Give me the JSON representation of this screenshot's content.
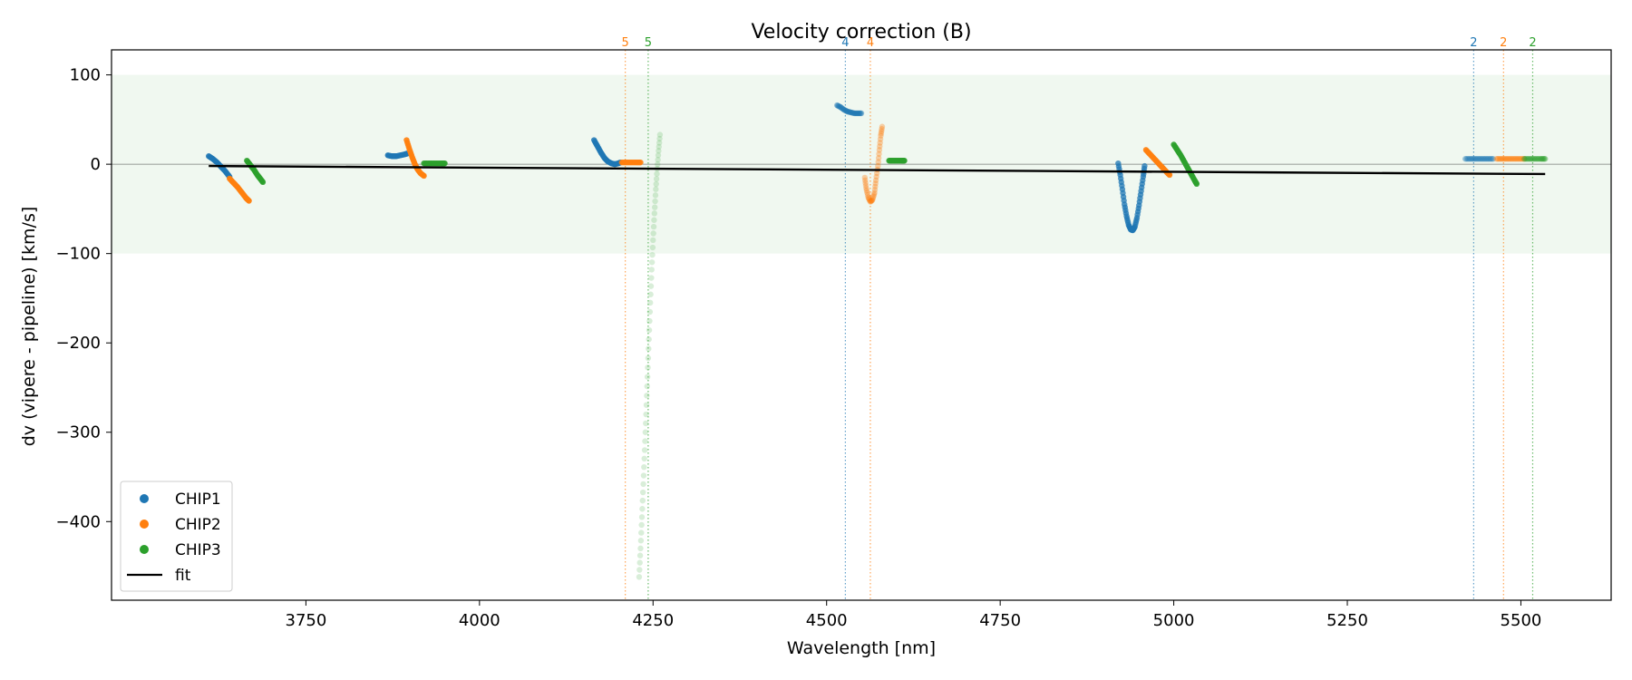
{
  "chart_data": {
    "type": "scatter",
    "title": "Velocity correction (B)",
    "xlabel": "Wavelength [nm]",
    "ylabel": "dv (vipere - pipeline) [km/s]",
    "xlim": [
      3470,
      5630
    ],
    "ylim": [
      -488,
      128
    ],
    "xticks": [
      3750,
      4000,
      4250,
      4500,
      4750,
      5000,
      5250,
      5500
    ],
    "yticks": [
      100,
      0,
      -100,
      -200,
      -300,
      -400
    ],
    "band": [
      -100,
      100
    ],
    "band_color": "#2ca02c",
    "zero_line": 0,
    "legend": [
      "CHIP1",
      "CHIP2",
      "CHIP3",
      "fit"
    ],
    "legend_position": "lower-left",
    "series": [
      {
        "name": "CHIP1",
        "color": "#1f77b4",
        "segments": [
          {
            "opacity": 0.9,
            "points": [
              [
                3610,
                9
              ],
              [
                3616,
                6
              ],
              [
                3622,
                2
              ],
              [
                3628,
                -3
              ],
              [
                3634,
                -8
              ],
              [
                3640,
                -14
              ]
            ]
          },
          {
            "opacity": 0.9,
            "points": [
              [
                3868,
                10
              ],
              [
                3874,
                9
              ],
              [
                3880,
                9
              ],
              [
                3886,
                10
              ],
              [
                3892,
                11
              ],
              [
                3896,
                12
              ]
            ]
          },
          {
            "opacity": 0.85,
            "points": [
              [
                4165,
                27
              ],
              [
                4170,
                20
              ],
              [
                4175,
                13
              ],
              [
                4180,
                7
              ],
              [
                4185,
                3
              ],
              [
                4190,
                1
              ],
              [
                4195,
                0
              ],
              [
                4200,
                1
              ],
              [
                4203,
                2
              ]
            ]
          },
          {
            "opacity": 0.45,
            "points": [
              [
                4515,
                66
              ],
              [
                4520,
                64
              ],
              [
                4525,
                61
              ],
              [
                4530,
                59
              ],
              [
                4535,
                58
              ],
              [
                4540,
                57
              ],
              [
                4545,
                57
              ],
              [
                4550,
                57
              ]
            ]
          },
          {
            "opacity": 0.75,
            "points": [
              [
                4920,
                1
              ],
              [
                4923,
                -12
              ],
              [
                4926,
                -28
              ],
              [
                4929,
                -45
              ],
              [
                4932,
                -58
              ],
              [
                4935,
                -68
              ],
              [
                4938,
                -73
              ],
              [
                4941,
                -74
              ],
              [
                4944,
                -70
              ],
              [
                4947,
                -60
              ],
              [
                4950,
                -46
              ],
              [
                4953,
                -30
              ],
              [
                4956,
                -14
              ],
              [
                4958,
                -2
              ]
            ]
          },
          {
            "opacity": 0.4,
            "points": [
              [
                5420,
                6
              ],
              [
                5428,
                6
              ],
              [
                5436,
                6
              ],
              [
                5444,
                6
              ],
              [
                5452,
                6
              ],
              [
                5460,
                6
              ]
            ]
          }
        ]
      },
      {
        "name": "CHIP2",
        "color": "#ff7f0e",
        "segments": [
          {
            "opacity": 0.9,
            "points": [
              [
                3640,
                -16
              ],
              [
                3646,
                -21
              ],
              [
                3652,
                -26
              ],
              [
                3658,
                -32
              ],
              [
                3664,
                -38
              ],
              [
                3668,
                -41
              ]
            ]
          },
          {
            "opacity": 0.9,
            "points": [
              [
                3895,
                27
              ],
              [
                3899,
                17
              ],
              [
                3903,
                8
              ],
              [
                3907,
                0
              ],
              [
                3911,
                -6
              ],
              [
                3915,
                -10
              ],
              [
                3920,
                -13
              ]
            ]
          },
          {
            "opacity": 0.85,
            "points": [
              [
                4205,
                2
              ],
              [
                4212,
                2
              ],
              [
                4219,
                2
              ],
              [
                4226,
                2
              ],
              [
                4232,
                2
              ]
            ]
          },
          {
            "opacity": 0.35,
            "points": [
              [
                4555,
                -15
              ],
              [
                4557,
                -27
              ],
              [
                4560,
                -37
              ],
              [
                4563,
                -42
              ],
              [
                4566,
                -40
              ],
              [
                4569,
                -32
              ],
              [
                4571,
                -18
              ],
              [
                4574,
                -2
              ],
              [
                4576,
                16
              ],
              [
                4578,
                32
              ],
              [
                4580,
                42
              ]
            ]
          },
          {
            "opacity": 0.9,
            "points": [
              [
                4960,
                16
              ],
              [
                4966,
                11
              ],
              [
                4972,
                6
              ],
              [
                4978,
                1
              ],
              [
                4984,
                -4
              ],
              [
                4990,
                -9
              ],
              [
                4994,
                -12
              ]
            ]
          },
          {
            "opacity": 0.4,
            "points": [
              [
                5465,
                6
              ],
              [
                5473,
                6
              ],
              [
                5481,
                6
              ],
              [
                5489,
                6
              ],
              [
                5497,
                6
              ],
              [
                5505,
                6
              ]
            ]
          }
        ]
      },
      {
        "name": "CHIP3",
        "color": "#2ca02c",
        "segments": [
          {
            "opacity": 0.9,
            "points": [
              [
                3665,
                4
              ],
              [
                3670,
                -1
              ],
              [
                3675,
                -6
              ],
              [
                3680,
                -12
              ],
              [
                3684,
                -16
              ],
              [
                3688,
                -20
              ]
            ]
          },
          {
            "opacity": 0.9,
            "points": [
              [
                3920,
                1
              ],
              [
                3928,
                1
              ],
              [
                3936,
                1
              ],
              [
                3944,
                1
              ],
              [
                3950,
                1
              ]
            ]
          },
          {
            "opacity": 0.18,
            "points": [
              [
                4230,
                -462
              ],
              [
                4232,
                -430
              ],
              [
                4234,
                -395
              ],
              [
                4236,
                -358
              ],
              [
                4238,
                -320
              ],
              [
                4240,
                -280
              ],
              [
                4242,
                -238
              ],
              [
                4244,
                -196
              ],
              [
                4246,
                -155
              ],
              [
                4248,
                -118
              ],
              [
                4250,
                -85
              ],
              [
                4252,
                -55
              ],
              [
                4254,
                -28
              ],
              [
                4256,
                -5
              ],
              [
                4258,
                15
              ],
              [
                4260,
                33
              ]
            ]
          },
          {
            "opacity": 0.9,
            "points": [
              [
                4590,
                4
              ],
              [
                4596,
                4
              ],
              [
                4602,
                4
              ],
              [
                4608,
                4
              ],
              [
                4612,
                4
              ]
            ]
          },
          {
            "opacity": 0.9,
            "points": [
              [
                5000,
                22
              ],
              [
                5005,
                16
              ],
              [
                5010,
                10
              ],
              [
                5015,
                3
              ],
              [
                5020,
                -4
              ],
              [
                5025,
                -11
              ],
              [
                5030,
                -18
              ],
              [
                5033,
                -22
              ]
            ]
          },
          {
            "opacity": 0.4,
            "points": [
              [
                5505,
                6
              ],
              [
                5513,
                6
              ],
              [
                5521,
                6
              ],
              [
                5529,
                6
              ],
              [
                5535,
                6
              ]
            ]
          }
        ]
      }
    ],
    "fit": {
      "name": "fit",
      "color": "#000000",
      "points": [
        [
          3610,
          -2
        ],
        [
          5535,
          -11
        ]
      ]
    },
    "order_markers": [
      {
        "label": "5",
        "x": 4210,
        "color": "#ff7f0e"
      },
      {
        "label": "5",
        "x": 4243,
        "color": "#2ca02c"
      },
      {
        "label": "4",
        "x": 4527,
        "color": "#1f77b4"
      },
      {
        "label": "4",
        "x": 4563,
        "color": "#ff7f0e"
      },
      {
        "label": "2",
        "x": 5432,
        "color": "#1f77b4"
      },
      {
        "label": "2",
        "x": 5475,
        "color": "#ff7f0e"
      },
      {
        "label": "2",
        "x": 5517,
        "color": "#2ca02c"
      }
    ]
  }
}
